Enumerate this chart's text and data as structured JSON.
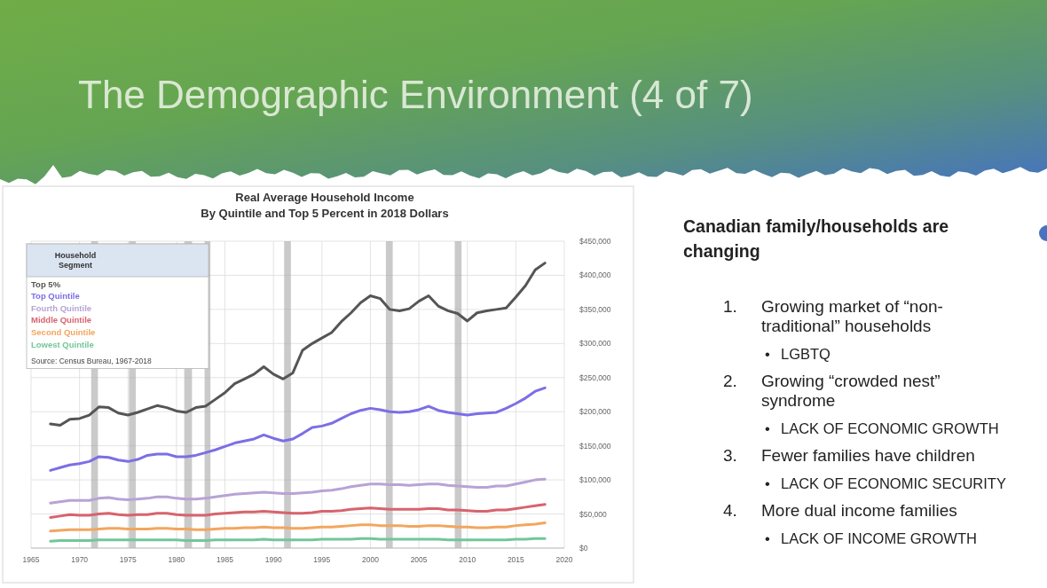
{
  "chart_data": [
    {
      "type": "other",
      "title": "The Demographic Environment (4 of 7)"
    },
    {
      "type": "line",
      "title": "Real Average Household Income",
      "subtitle": "By Quintile and Top 5 Percent in 2018 Dollars",
      "legend_title": "Household Segment",
      "legend": "top left",
      "grid": true,
      "x": [
        1967,
        1968,
        1969,
        1970,
        1971,
        1972,
        1973,
        1974,
        1975,
        1976,
        1977,
        1978,
        1979,
        1980,
        1981,
        1982,
        1983,
        1984,
        1985,
        1986,
        1987,
        1988,
        1989,
        1990,
        1991,
        1992,
        1993,
        1994,
        1995,
        1996,
        1997,
        1998,
        1999,
        2000,
        2001,
        2002,
        2003,
        2004,
        2005,
        2006,
        2007,
        2008,
        2009,
        2010,
        2011,
        2012,
        2013,
        2014,
        2015,
        2016,
        2017,
        2018
      ],
      "xlim": [
        1965,
        2020
      ],
      "xticks": [
        1965,
        1970,
        1975,
        1980,
        1985,
        1990,
        1995,
        2000,
        2005,
        2010,
        2015,
        2020
      ],
      "ylim": [
        0,
        450000
      ],
      "yticks": [
        {
          "value": 0,
          "label": "$0"
        },
        {
          "value": 50000,
          "label": "$50,000"
        },
        {
          "value": 100000,
          "label": "$100,000"
        },
        {
          "value": 150000,
          "label": "$150,000"
        },
        {
          "value": 200000,
          "label": "$200,000"
        },
        {
          "value": 250000,
          "label": "$250,000"
        },
        {
          "value": 300000,
          "label": "$300,000"
        },
        {
          "value": 350000,
          "label": "$350,000"
        },
        {
          "value": 400000,
          "label": "$400,000"
        },
        {
          "value": 450000,
          "label": "$450,000"
        }
      ],
      "bands": [
        {
          "axis": "x",
          "from": 1971.2,
          "to": 1971.9,
          "color": "#a6a6a6"
        },
        {
          "axis": "x",
          "from": 1975.1,
          "to": 1975.8,
          "color": "#a6a6a6"
        },
        {
          "axis": "x",
          "from": 1980.8,
          "to": 1981.6,
          "color": "#a6a6a6"
        },
        {
          "axis": "x",
          "from": 1982.9,
          "to": 1983.5,
          "color": "#a6a6a6"
        },
        {
          "axis": "x",
          "from": 1991.1,
          "to": 1991.8,
          "color": "#a6a6a6"
        },
        {
          "axis": "x",
          "from": 2001.6,
          "to": 2002.3,
          "color": "#a6a6a6"
        },
        {
          "axis": "x",
          "from": 2008.7,
          "to": 2009.4,
          "color": "#a6a6a6"
        }
      ],
      "annotations": [
        "Source: Census Bureau, 1967-2018"
      ],
      "series": [
        {
          "name": "Top 5%",
          "color": "#555555",
          "values": [
            182000,
            180000,
            189000,
            190000,
            195000,
            207000,
            206000,
            198000,
            195000,
            199000,
            204000,
            209000,
            206000,
            201000,
            199000,
            206000,
            208000,
            218000,
            228000,
            241000,
            248000,
            255000,
            266000,
            255000,
            248000,
            257000,
            290000,
            300000,
            308000,
            316000,
            332000,
            345000,
            360000,
            370000,
            366000,
            350000,
            348000,
            351000,
            362000,
            370000,
            355000,
            348000,
            344000,
            333000,
            345000,
            348000,
            350000,
            352000,
            368000,
            385000,
            408000,
            418000
          ]
        },
        {
          "name": "Top Quintile",
          "color": "#7c6ee6",
          "values": [
            114000,
            118000,
            122000,
            124000,
            127000,
            134000,
            133000,
            129000,
            127000,
            130000,
            136000,
            138000,
            138000,
            134000,
            134000,
            136000,
            140000,
            144000,
            149000,
            154000,
            157000,
            160000,
            166000,
            161000,
            157000,
            160000,
            168000,
            177000,
            179000,
            183000,
            190000,
            197000,
            202000,
            205000,
            203000,
            200000,
            199000,
            200000,
            203000,
            208000,
            202000,
            199000,
            197000,
            195000,
            197000,
            198000,
            199000,
            205000,
            212000,
            220000,
            230000,
            235000
          ]
        },
        {
          "name": "Fourth Quintile",
          "color": "#b7a3d6",
          "values": [
            66000,
            68000,
            70000,
            70000,
            70000,
            73000,
            74000,
            72000,
            71000,
            72000,
            73000,
            75000,
            75000,
            73000,
            72000,
            72000,
            73000,
            75000,
            77000,
            79000,
            80000,
            81000,
            82000,
            81000,
            80000,
            80000,
            81000,
            82000,
            84000,
            85000,
            87000,
            90000,
            92000,
            94000,
            94000,
            93000,
            93000,
            92000,
            93000,
            94000,
            94000,
            92000,
            91000,
            90000,
            89000,
            89000,
            91000,
            91000,
            94000,
            97000,
            100000,
            101000
          ]
        },
        {
          "name": "Middle Quintile",
          "color": "#d7636e",
          "values": [
            45000,
            47000,
            49000,
            48000,
            48000,
            50000,
            51000,
            49000,
            48000,
            49000,
            49000,
            51000,
            51000,
            49000,
            48000,
            48000,
            48000,
            50000,
            51000,
            52000,
            53000,
            53000,
            54000,
            53000,
            52000,
            51000,
            51000,
            52000,
            54000,
            54000,
            55000,
            57000,
            58000,
            59000,
            58000,
            57000,
            57000,
            57000,
            57000,
            58000,
            58000,
            56000,
            56000,
            55000,
            54000,
            54000,
            56000,
            56000,
            58000,
            60000,
            62000,
            64000
          ]
        },
        {
          "name": "Second Quintile",
          "color": "#f2a65e",
          "values": [
            25000,
            26000,
            27000,
            27000,
            27000,
            28000,
            29000,
            29000,
            28000,
            28000,
            28000,
            29000,
            29000,
            28000,
            28000,
            27000,
            27000,
            28000,
            29000,
            29000,
            30000,
            30000,
            31000,
            30000,
            30000,
            29000,
            29000,
            30000,
            31000,
            31000,
            32000,
            33000,
            34000,
            34000,
            33000,
            33000,
            33000,
            32000,
            32000,
            33000,
            33000,
            32000,
            31000,
            31000,
            30000,
            30000,
            31000,
            31000,
            33000,
            34000,
            35000,
            37000
          ]
        },
        {
          "name": "Lowest Quintile",
          "color": "#72c69a",
          "values": [
            10000,
            11000,
            11000,
            11000,
            11000,
            12000,
            12000,
            12000,
            12000,
            12000,
            12000,
            12000,
            12000,
            12000,
            11000,
            11000,
            11000,
            12000,
            12000,
            12000,
            12000,
            12000,
            13000,
            12000,
            12000,
            12000,
            12000,
            12000,
            13000,
            13000,
            13000,
            13000,
            14000,
            14000,
            13000,
            13000,
            13000,
            13000,
            13000,
            13000,
            13000,
            12000,
            12000,
            12000,
            12000,
            12000,
            12000,
            12000,
            13000,
            13000,
            14000,
            14000
          ]
        }
      ]
    },
    {
      "type": "other",
      "title": "Canadian family/households are changing",
      "annotations": [
        "1. Growing market of “non-traditional” households",
        "• LGBTQ",
        "2. Growing “crowded nest” syndrome",
        "• LACK OF ECONOMIC GROWTH",
        "3. Fewer families have children",
        "• LACK OF ECONOMIC SECURITY",
        "4. More dual income families",
        "• LACK OF INCOME GROWTH"
      ]
    }
  ]
}
